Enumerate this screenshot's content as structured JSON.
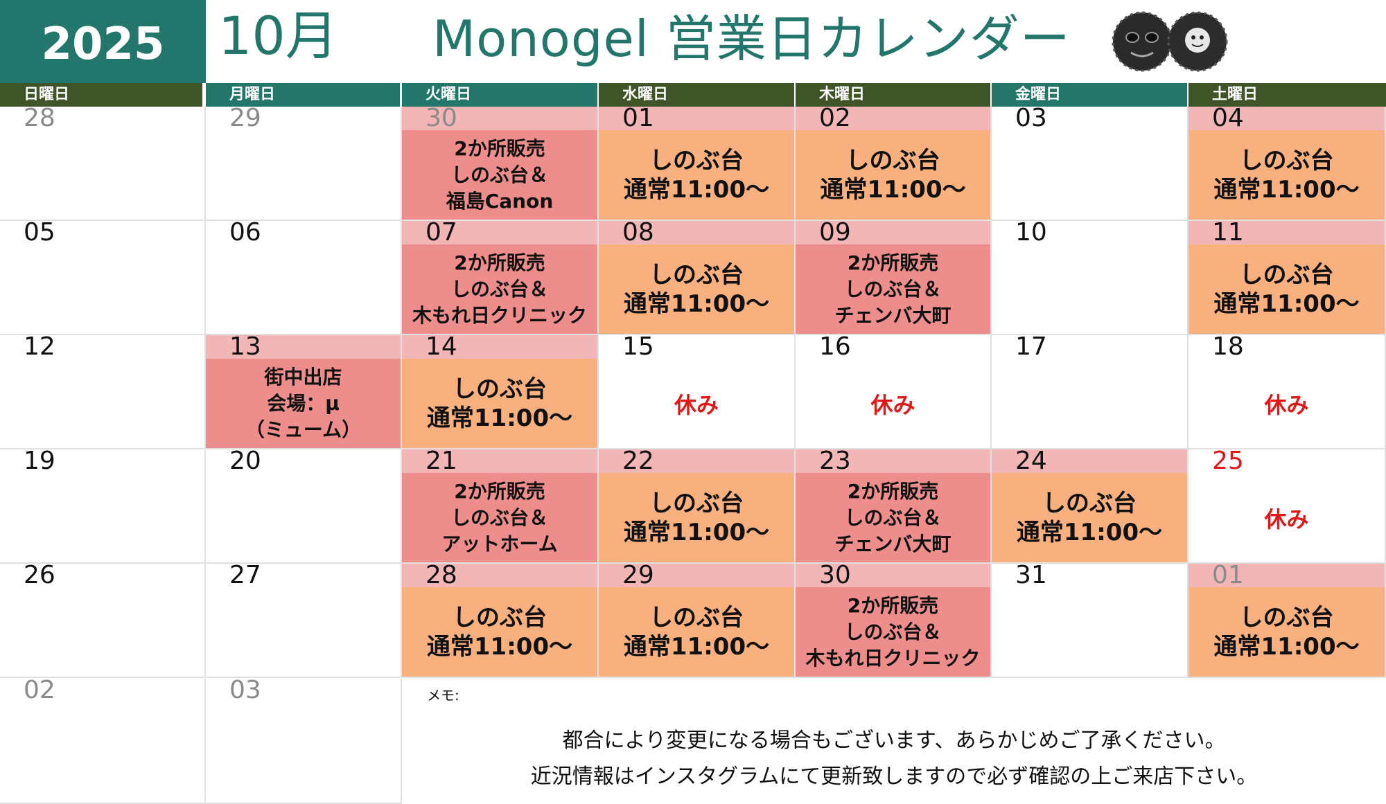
{
  "header": {
    "year": "2025",
    "month": "10月",
    "title": "Monogel 営業日カレンダー"
  },
  "weekdays": [
    "日曜日",
    "月曜日",
    "火曜日",
    "水曜日",
    "木曜日",
    "金曜日",
    "土曜日"
  ],
  "weeks": [
    [
      {
        "day": "28",
        "dim": true
      },
      {
        "day": "29",
        "dim": true
      },
      {
        "day": "30",
        "dim": true,
        "type": "red",
        "lines": [
          "2か所販売",
          "しのぶ台＆",
          "福島Canon"
        ]
      },
      {
        "day": "01",
        "type": "orange",
        "lines": [
          "しのぶ台",
          "通常11:00〜"
        ]
      },
      {
        "day": "02",
        "type": "orange",
        "lines": [
          "しのぶ台",
          "通常11:00〜"
        ]
      },
      {
        "day": "03"
      },
      {
        "day": "04",
        "type": "orange",
        "lines": [
          "しのぶ台",
          "通常11:00〜"
        ]
      }
    ],
    [
      {
        "day": "05"
      },
      {
        "day": "06"
      },
      {
        "day": "07",
        "type": "red",
        "lines": [
          "2か所販売",
          "しのぶ台＆",
          "木もれ日クリニック"
        ]
      },
      {
        "day": "08",
        "type": "orange",
        "lines": [
          "しのぶ台",
          "通常11:00〜"
        ]
      },
      {
        "day": "09",
        "type": "red",
        "lines": [
          "2か所販売",
          "しのぶ台＆",
          "チェンバ大町"
        ]
      },
      {
        "day": "10"
      },
      {
        "day": "11",
        "type": "orange",
        "lines": [
          "しのぶ台",
          "通常11:00〜"
        ]
      }
    ],
    [
      {
        "day": "12"
      },
      {
        "day": "13",
        "type": "red",
        "lines": [
          "街中出店",
          "会場：μ",
          "（ミューム）"
        ]
      },
      {
        "day": "14",
        "type": "orange",
        "lines": [
          "しのぶ台",
          "通常11:00〜"
        ]
      },
      {
        "day": "15",
        "type": "rest",
        "lines": [
          "休み"
        ]
      },
      {
        "day": "16",
        "type": "rest",
        "lines": [
          "休み"
        ]
      },
      {
        "day": "17"
      },
      {
        "day": "18",
        "type": "rest",
        "lines": [
          "休み"
        ]
      }
    ],
    [
      {
        "day": "19"
      },
      {
        "day": "20"
      },
      {
        "day": "21",
        "type": "red",
        "lines": [
          "2か所販売",
          "しのぶ台＆",
          "アットホーム"
        ]
      },
      {
        "day": "22",
        "type": "orange",
        "lines": [
          "しのぶ台",
          "通常11:00〜"
        ]
      },
      {
        "day": "23",
        "type": "red",
        "lines": [
          "2か所販売",
          "しのぶ台＆",
          "チェンバ大町"
        ]
      },
      {
        "day": "24",
        "type": "orange",
        "lines": [
          "しのぶ台",
          "通常11:00〜"
        ]
      },
      {
        "day": "25",
        "holiday": true,
        "type": "rest",
        "lines": [
          "休み"
        ]
      }
    ],
    [
      {
        "day": "26"
      },
      {
        "day": "27"
      },
      {
        "day": "28",
        "type": "orange",
        "lines": [
          "しのぶ台",
          "通常11:00〜"
        ]
      },
      {
        "day": "29",
        "type": "orange",
        "lines": [
          "しのぶ台",
          "通常11:00〜"
        ]
      },
      {
        "day": "30",
        "type": "red",
        "lines": [
          "2か所販売",
          "しのぶ台＆",
          "木もれ日クリニック"
        ]
      },
      {
        "day": "31"
      },
      {
        "day": "01",
        "dim": true,
        "type": "orange",
        "lines": [
          "しのぶ台",
          "通常11:00〜"
        ]
      }
    ],
    [
      {
        "day": "02",
        "dim": true
      },
      {
        "day": "03",
        "dim": true
      }
    ]
  ],
  "memo": {
    "label": "メモ:",
    "lines": [
      "都合により変更になる場合もございます、あらかじめご了承ください。",
      "近況情報はインスタグラムにて更新致しますので必ず確認の上ご来店下さい。"
    ]
  },
  "colors": {
    "teal": "#22766b",
    "olive": "#3f5528",
    "orange": "#f7b07e",
    "red_event": "#ee8e8c",
    "pink_head": "#f3b6b6",
    "holiday_red": "#e01818"
  },
  "icons": {
    "logo": "two-round-face-logo"
  }
}
